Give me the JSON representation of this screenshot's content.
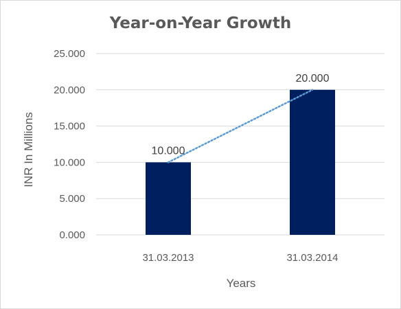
{
  "chart_data": {
    "type": "bar",
    "title": "Year-on-Year Growth",
    "xlabel": "Years",
    "ylabel": "INR In Millions",
    "categories": [
      "31.03.2013",
      "31.03.2014"
    ],
    "values": [
      10,
      20
    ],
    "data_labels": [
      "10.000",
      "20.000"
    ],
    "ylim": [
      0,
      25
    ],
    "yticks": [
      0,
      5,
      10,
      15,
      20,
      25
    ],
    "ytick_labels": [
      "0.000",
      "5.000",
      "10.000",
      "15.000",
      "20.000",
      "25.000"
    ],
    "trendline": "linear-dotted",
    "grid": "horizontal",
    "legend": "none",
    "colors": {
      "bar": "#001f5f",
      "trendline": "#5b9bd5",
      "grid": "#d9d9d9",
      "text": "#595959"
    }
  }
}
